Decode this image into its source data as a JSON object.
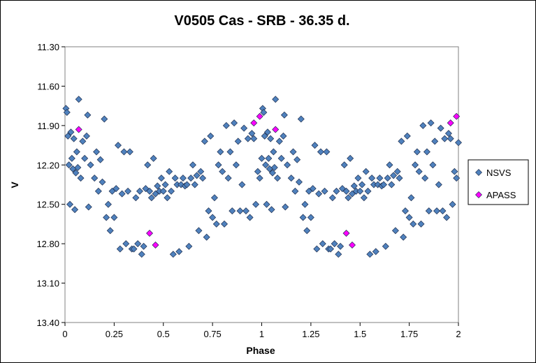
{
  "chart_data": {
    "type": "scatter",
    "title": "V0505 Cas - SRB - 36.35 d.",
    "xlabel": "Phase",
    "ylabel": "V",
    "xlim": [
      0,
      2
    ],
    "ylim": [
      11.3,
      13.4
    ],
    "y_inverted": true,
    "xticks": [
      "0",
      "0.25",
      "0.5",
      "0.75",
      "1",
      "1.25",
      "1.5",
      "1.75",
      "2"
    ],
    "xtick_values": [
      0,
      0.25,
      0.5,
      0.75,
      1,
      1.25,
      1.5,
      1.75,
      2
    ],
    "yticks": [
      "11.30",
      "11.60",
      "11.90",
      "12.20",
      "12.50",
      "12.80",
      "13.10",
      "13.40"
    ],
    "ytick_values": [
      11.3,
      11.6,
      11.9,
      12.2,
      12.5,
      12.8,
      13.1,
      13.4
    ],
    "grid": false,
    "legend_position": "right",
    "series": [
      {
        "name": "NSVS",
        "color": "#4f81bd",
        "marker": "diamond",
        "points": [
          [
            0.005,
            11.77
          ],
          [
            0.01,
            11.8
          ],
          [
            0.015,
            11.98
          ],
          [
            0.02,
            12.2
          ],
          [
            0.025,
            12.5
          ],
          [
            0.03,
            11.95
          ],
          [
            0.035,
            12.15
          ],
          [
            0.04,
            12.23
          ],
          [
            0.045,
            12.0
          ],
          [
            0.05,
            12.54
          ],
          [
            0.055,
            12.26
          ],
          [
            0.06,
            12.1
          ],
          [
            0.065,
            12.22
          ],
          [
            0.07,
            11.7
          ],
          [
            0.08,
            12.3
          ],
          [
            0.09,
            12.02
          ],
          [
            0.1,
            12.15
          ],
          [
            0.11,
            11.98
          ],
          [
            0.115,
            11.82
          ],
          [
            0.12,
            12.52
          ],
          [
            0.13,
            12.2
          ],
          [
            0.15,
            12.3
          ],
          [
            0.16,
            12.1
          ],
          [
            0.17,
            12.4
          ],
          [
            0.18,
            12.16
          ],
          [
            0.19,
            12.33
          ],
          [
            0.2,
            11.85
          ],
          [
            0.21,
            12.6
          ],
          [
            0.22,
            12.5
          ],
          [
            0.23,
            12.7
          ],
          [
            0.24,
            12.4
          ],
          [
            0.25,
            12.6
          ],
          [
            0.26,
            12.38
          ],
          [
            0.27,
            12.05
          ],
          [
            0.28,
            12.84
          ],
          [
            0.29,
            12.42
          ],
          [
            0.3,
            12.1
          ],
          [
            0.31,
            12.8
          ],
          [
            0.32,
            12.4
          ],
          [
            0.33,
            12.1
          ],
          [
            0.34,
            12.84
          ],
          [
            0.35,
            12.84
          ],
          [
            0.36,
            12.45
          ],
          [
            0.37,
            12.8
          ],
          [
            0.38,
            12.4
          ],
          [
            0.39,
            12.88
          ],
          [
            0.4,
            12.82
          ],
          [
            0.41,
            12.38
          ],
          [
            0.42,
            12.2
          ],
          [
            0.43,
            12.4
          ],
          [
            0.44,
            12.45
          ],
          [
            0.45,
            12.15
          ],
          [
            0.46,
            12.42
          ],
          [
            0.47,
            12.36
          ],
          [
            0.48,
            12.4
          ],
          [
            0.49,
            12.3
          ],
          [
            0.5,
            12.4
          ],
          [
            0.51,
            12.35
          ],
          [
            0.52,
            12.45
          ],
          [
            0.53,
            12.25
          ],
          [
            0.54,
            12.4
          ],
          [
            0.55,
            12.88
          ],
          [
            0.56,
            12.3
          ],
          [
            0.57,
            12.35
          ],
          [
            0.58,
            12.86
          ],
          [
            0.59,
            12.35
          ],
          [
            0.6,
            12.3
          ],
          [
            0.61,
            12.36
          ],
          [
            0.62,
            12.35
          ],
          [
            0.63,
            12.82
          ],
          [
            0.64,
            12.3
          ],
          [
            0.65,
            12.2
          ],
          [
            0.66,
            12.35
          ],
          [
            0.67,
            12.28
          ],
          [
            0.68,
            12.7
          ],
          [
            0.69,
            12.25
          ],
          [
            0.7,
            12.3
          ],
          [
            0.71,
            12.02
          ],
          [
            0.72,
            12.75
          ],
          [
            0.73,
            12.55
          ],
          [
            0.74,
            11.98
          ],
          [
            0.75,
            12.6
          ],
          [
            0.76,
            12.45
          ],
          [
            0.77,
            12.65
          ],
          [
            0.78,
            12.2
          ],
          [
            0.79,
            12.1
          ],
          [
            0.8,
            12.25
          ],
          [
            0.81,
            12.65
          ],
          [
            0.82,
            11.9
          ],
          [
            0.83,
            12.3
          ],
          [
            0.84,
            12.1
          ],
          [
            0.85,
            12.55
          ],
          [
            0.86,
            11.88
          ],
          [
            0.87,
            12.2
          ],
          [
            0.88,
            12.02
          ],
          [
            0.89,
            12.55
          ],
          [
            0.9,
            12.35
          ],
          [
            0.91,
            11.92
          ],
          [
            0.92,
            12.55
          ],
          [
            0.93,
            12.0
          ],
          [
            0.94,
            12.6
          ],
          [
            0.95,
            11.96
          ],
          [
            0.96,
            12.0
          ],
          [
            0.97,
            12.5
          ],
          [
            0.98,
            12.25
          ],
          [
            0.99,
            12.3
          ],
          [
            1.0,
            12.15
          ],
          [
            1.005,
            11.77
          ],
          [
            1.01,
            11.8
          ],
          [
            1.015,
            11.98
          ],
          [
            1.02,
            12.2
          ],
          [
            1.025,
            12.5
          ],
          [
            1.03,
            11.95
          ],
          [
            1.035,
            12.15
          ],
          [
            1.04,
            12.23
          ],
          [
            1.045,
            12.0
          ],
          [
            1.05,
            12.54
          ],
          [
            1.055,
            12.26
          ],
          [
            1.06,
            12.1
          ],
          [
            1.065,
            12.22
          ],
          [
            1.07,
            11.7
          ],
          [
            1.08,
            12.3
          ],
          [
            1.09,
            12.02
          ],
          [
            1.1,
            12.15
          ],
          [
            1.11,
            11.98
          ],
          [
            1.115,
            11.82
          ],
          [
            1.12,
            12.52
          ],
          [
            1.13,
            12.2
          ],
          [
            1.15,
            12.3
          ],
          [
            1.16,
            12.1
          ],
          [
            1.17,
            12.4
          ],
          [
            1.18,
            12.16
          ],
          [
            1.19,
            12.33
          ],
          [
            1.2,
            11.85
          ],
          [
            1.21,
            12.6
          ],
          [
            1.22,
            12.5
          ],
          [
            1.23,
            12.7
          ],
          [
            1.24,
            12.4
          ],
          [
            1.25,
            12.6
          ],
          [
            1.26,
            12.38
          ],
          [
            1.27,
            12.05
          ],
          [
            1.28,
            12.84
          ],
          [
            1.29,
            12.42
          ],
          [
            1.3,
            12.1
          ],
          [
            1.31,
            12.8
          ],
          [
            1.32,
            12.4
          ],
          [
            1.33,
            12.1
          ],
          [
            1.34,
            12.84
          ],
          [
            1.35,
            12.84
          ],
          [
            1.36,
            12.45
          ],
          [
            1.37,
            12.8
          ],
          [
            1.38,
            12.4
          ],
          [
            1.39,
            12.88
          ],
          [
            1.4,
            12.82
          ],
          [
            1.41,
            12.38
          ],
          [
            1.42,
            12.2
          ],
          [
            1.43,
            12.4
          ],
          [
            1.44,
            12.45
          ],
          [
            1.45,
            12.15
          ],
          [
            1.46,
            12.42
          ],
          [
            1.47,
            12.36
          ],
          [
            1.48,
            12.4
          ],
          [
            1.49,
            12.3
          ],
          [
            1.5,
            12.4
          ],
          [
            1.51,
            12.35
          ],
          [
            1.52,
            12.45
          ],
          [
            1.53,
            12.25
          ],
          [
            1.54,
            12.4
          ],
          [
            1.55,
            12.88
          ],
          [
            1.56,
            12.3
          ],
          [
            1.57,
            12.35
          ],
          [
            1.58,
            12.86
          ],
          [
            1.59,
            12.35
          ],
          [
            1.6,
            12.3
          ],
          [
            1.61,
            12.36
          ],
          [
            1.62,
            12.35
          ],
          [
            1.63,
            12.82
          ],
          [
            1.64,
            12.3
          ],
          [
            1.65,
            12.2
          ],
          [
            1.66,
            12.35
          ],
          [
            1.67,
            12.28
          ],
          [
            1.68,
            12.7
          ],
          [
            1.69,
            12.25
          ],
          [
            1.7,
            12.3
          ],
          [
            1.71,
            12.02
          ],
          [
            1.72,
            12.75
          ],
          [
            1.73,
            12.55
          ],
          [
            1.74,
            11.98
          ],
          [
            1.75,
            12.6
          ],
          [
            1.76,
            12.45
          ],
          [
            1.77,
            12.65
          ],
          [
            1.78,
            12.2
          ],
          [
            1.79,
            12.1
          ],
          [
            1.8,
            12.25
          ],
          [
            1.81,
            12.65
          ],
          [
            1.82,
            11.9
          ],
          [
            1.83,
            12.3
          ],
          [
            1.84,
            12.1
          ],
          [
            1.85,
            12.55
          ],
          [
            1.86,
            11.88
          ],
          [
            1.87,
            12.2
          ],
          [
            1.88,
            12.02
          ],
          [
            1.89,
            12.55
          ],
          [
            1.9,
            12.35
          ],
          [
            1.91,
            11.92
          ],
          [
            1.92,
            12.55
          ],
          [
            1.93,
            12.0
          ],
          [
            1.94,
            12.6
          ],
          [
            1.95,
            11.96
          ],
          [
            1.96,
            12.0
          ],
          [
            1.97,
            12.5
          ],
          [
            1.98,
            12.25
          ],
          [
            1.99,
            12.3
          ],
          [
            2.0,
            12.03
          ]
        ]
      },
      {
        "name": "APASS",
        "color": "#ff00ff",
        "marker": "diamond",
        "points": [
          [
            0.07,
            11.93
          ],
          [
            0.43,
            12.72
          ],
          [
            0.46,
            12.81
          ],
          [
            0.96,
            11.88
          ],
          [
            0.99,
            11.83
          ],
          [
            1.07,
            11.93
          ],
          [
            1.43,
            12.72
          ],
          [
            1.46,
            12.81
          ],
          [
            1.96,
            11.88
          ],
          [
            1.99,
            11.83
          ]
        ]
      }
    ]
  }
}
